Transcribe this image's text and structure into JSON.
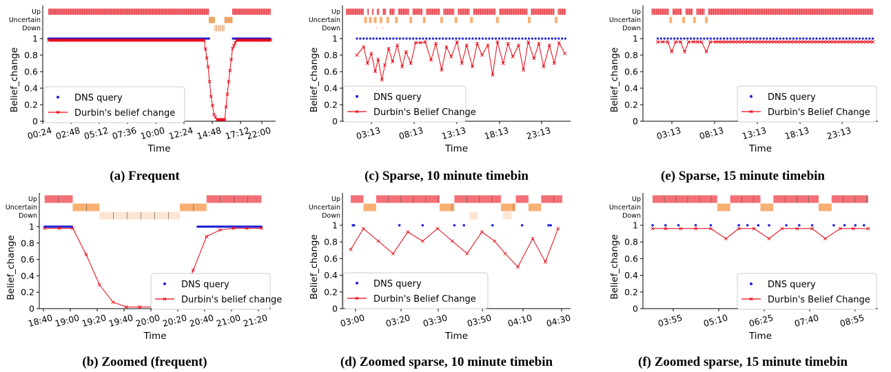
{
  "chart_data": [
    {
      "type": "line",
      "caption": "(a) Frequent",
      "xlabel": "Time",
      "ylabel": "Belief_change",
      "x_ticks": [
        "00:24",
        "02:48",
        "05:12",
        "07:36",
        "10:00",
        "12:24",
        "14:48",
        "17:12",
        "22:00"
      ],
      "y_ticks": [
        "0",
        "0.2",
        "0.4",
        "0.6",
        "0.8",
        "1"
      ],
      "state_labels": [
        "Up",
        "Uncertain",
        "Down"
      ],
      "legend": [
        "DNS query",
        "Durbin's belief change"
      ],
      "legend_position": "center-left",
      "x_range_hours": [
        0.4,
        24.2
      ],
      "ylim": [
        0,
        1.25
      ],
      "state_bands": [
        {
          "state": "Up",
          "start": 1.0,
          "end": 17.4
        },
        {
          "state": "Uncertain",
          "start": 17.4,
          "end": 18.0
        },
        {
          "state": "Down",
          "start": 18.0,
          "end": 19.0
        },
        {
          "state": "Uncertain",
          "start": 19.0,
          "end": 19.8
        },
        {
          "state": "Up",
          "start": 19.8,
          "end": 23.7
        }
      ],
      "dns_query": {
        "start": 1.0,
        "end": 23.7,
        "gap": [
          17.4,
          19.8
        ],
        "value": 1.0
      },
      "belief_change": {
        "x": [
          1.0,
          16.9,
          17.3,
          17.6,
          17.9,
          18.2,
          18.6,
          19.0,
          19.4,
          19.8,
          20.2,
          23.7
        ],
        "y": [
          0.98,
          0.98,
          0.66,
          0.3,
          0.08,
          0.02,
          0.02,
          0.02,
          0.48,
          0.88,
          0.98,
          0.98
        ]
      }
    },
    {
      "type": "line",
      "caption": "(b) Zoomed (frequent)",
      "xlabel": "Time",
      "ylabel": "Belief_change",
      "x_ticks": [
        "18:40",
        "19:00",
        "19:20",
        "19:40",
        "20:00",
        "20:20",
        "20:40",
        "21:00",
        "21:20"
      ],
      "y_ticks": [
        "0",
        "0.2",
        "0.4",
        "0.6",
        "0.8",
        "1"
      ],
      "state_labels": [
        "Up",
        "Uncertain",
        "Down"
      ],
      "legend": [
        "DNS query",
        "Durbin's belief change"
      ],
      "legend_position": "lower-right",
      "x_range_minutes": [
        1115,
        1288
      ],
      "ylim": [
        0,
        1.25
      ],
      "state_bands": [
        {
          "state": "Up",
          "start": 1119,
          "end": 1140
        },
        {
          "state": "Uncertain",
          "start": 1140,
          "end": 1160
        },
        {
          "state": "Down",
          "start": 1160,
          "end": 1220
        },
        {
          "state": "Uncertain",
          "start": 1220,
          "end": 1240
        },
        {
          "state": "Up",
          "start": 1240,
          "end": 1281
        }
      ],
      "dns_query": {
        "start": 1119,
        "end": 1281,
        "gap": [
          1140,
          1233
        ],
        "value": 1.0
      },
      "belief_change": {
        "x": [
          1119,
          1130,
          1140,
          1150,
          1160,
          1170,
          1180,
          1190,
          1200,
          1210,
          1220,
          1230,
          1240,
          1250,
          1260,
          1270,
          1281
        ],
        "y": [
          0.98,
          0.98,
          0.98,
          0.66,
          0.29,
          0.08,
          0.02,
          0.02,
          0.02,
          0.02,
          0.02,
          0.47,
          0.88,
          0.96,
          0.98,
          0.98,
          0.98
        ]
      }
    },
    {
      "type": "line",
      "caption": "(c) Sparse, 10 minute timebin",
      "xlabel": "Time",
      "ylabel": "Belief_change",
      "x_ticks": [
        "03:13",
        "08:13",
        "13:13",
        "18:13",
        "23:13"
      ],
      "y_ticks": [
        "0",
        "0.2",
        "0.4",
        "0.6",
        "0.8",
        "1"
      ],
      "state_labels": [
        "Up",
        "Uncertain",
        "Down"
      ],
      "legend": [
        "DNS query",
        "Durbin's Belief Change"
      ],
      "legend_position": "lower-left",
      "x_range_hours": [
        0.5,
        24.2
      ],
      "ylim": [
        0,
        1.25
      ],
      "uncertain_times": [
        2.9,
        3.4,
        3.9,
        4.5,
        5.2,
        6.1,
        7.6,
        9.0,
        10.8,
        12.3,
        13.9,
        16.6,
        19.9,
        22.7
      ],
      "down_times": [
        4.0,
        4.6
      ],
      "belief_change": {
        "x": [
          2.0,
          2.7,
          3.1,
          3.5,
          3.9,
          4.2,
          4.6,
          4.9,
          5.3,
          5.7,
          6.2,
          6.7,
          7.1,
          7.6,
          8.1,
          8.6,
          9.1,
          9.7,
          10.2,
          10.8,
          11.3,
          11.8,
          12.4,
          12.9,
          13.4,
          14.0,
          14.5,
          15.0,
          15.6,
          16.1,
          16.6,
          17.2,
          17.7,
          18.2,
          18.8,
          19.3,
          19.8,
          20.4,
          20.9,
          21.4,
          22.0,
          22.5,
          23.0,
          23.6
        ],
        "y": [
          0.8,
          0.9,
          0.7,
          0.82,
          0.6,
          0.75,
          0.5,
          0.68,
          0.88,
          0.72,
          0.92,
          0.66,
          0.84,
          0.7,
          0.95,
          0.95,
          0.96,
          0.74,
          0.94,
          0.62,
          0.9,
          0.78,
          0.96,
          0.7,
          0.92,
          0.66,
          0.94,
          0.8,
          0.92,
          0.56,
          0.96,
          0.7,
          0.94,
          0.78,
          0.92,
          0.62,
          0.96,
          0.76,
          0.94,
          0.66,
          0.92,
          0.7,
          0.95,
          0.82
        ]
      }
    },
    {
      "type": "line",
      "caption": "(d) Zoomed sparse, 10 minute timebin",
      "xlabel": "Time",
      "ylabel": "Belief_change",
      "x_ticks": [
        "03:00",
        "03:20",
        "03:30",
        "03:50",
        "04:10",
        "04:30"
      ],
      "y_ticks": [
        "0",
        "0.2",
        "0.4",
        "0.6",
        "0.8",
        "1"
      ],
      "state_labels": [
        "Up",
        "Uncertain",
        "Down"
      ],
      "legend": [
        "DNS query",
        "Durbin's Belief Change"
      ],
      "legend_position": "lower-left",
      "state_bands": [
        {
          "state": "Up",
          "start": 0.0,
          "end": 0.06
        },
        {
          "state": "Up",
          "start": 0.12,
          "end": 0.42
        },
        {
          "state": "Up",
          "start": 0.49,
          "end": 0.71
        },
        {
          "state": "Up",
          "start": 0.78,
          "end": 0.84
        },
        {
          "state": "Up",
          "start": 0.9,
          "end": 1.0
        },
        {
          "state": "Uncertain",
          "start": 0.06,
          "end": 0.12
        },
        {
          "state": "Uncertain",
          "start": 0.42,
          "end": 0.49
        },
        {
          "state": "Uncertain",
          "start": 0.71,
          "end": 0.78
        },
        {
          "state": "Uncertain",
          "start": 0.84,
          "end": 0.9
        },
        {
          "state": "Down",
          "start": 0.56,
          "end": 0.6
        },
        {
          "state": "Down",
          "start": 0.72,
          "end": 0.76
        }
      ],
      "dns_query": {
        "x": [
          0.01,
          0.015,
          0.23,
          0.34,
          0.49,
          0.535,
          0.67,
          0.81,
          0.935,
          0.945
        ],
        "y": [
          1.0,
          1.0,
          1.0,
          1.0,
          1.0,
          1.0,
          1.0,
          1.0,
          1.0,
          1.0
        ]
      },
      "belief_change": {
        "x": [
          0.0,
          0.06,
          0.13,
          0.2,
          0.27,
          0.34,
          0.41,
          0.48,
          0.55,
          0.62,
          0.68,
          0.73,
          0.79,
          0.86,
          0.92,
          0.98
        ],
        "y": [
          0.71,
          0.96,
          0.81,
          0.66,
          0.92,
          0.81,
          0.96,
          0.81,
          0.66,
          0.92,
          0.81,
          0.66,
          0.5,
          0.84,
          0.56,
          0.96
        ]
      }
    },
    {
      "type": "line",
      "caption": "(e) Sparse, 15 minute timebin",
      "xlabel": "Time",
      "ylabel": "Belief_change",
      "x_ticks": [
        "03:13",
        "08:13",
        "13:13",
        "18:13",
        "23:13"
      ],
      "y_ticks": [
        "0",
        "0.2",
        "0.4",
        "0.6",
        "0.8",
        "1"
      ],
      "state_labels": [
        "Up",
        "Uncertain",
        "Down"
      ],
      "legend": [
        "DNS query",
        "Durbin's Belief Change"
      ],
      "legend_position": "lower-right",
      "x_range_hours": [
        0.5,
        24.2
      ],
      "ylim": [
        0,
        1.25
      ],
      "uncertain_times": [
        3.3,
        4.6,
        5.7,
        6.9
      ],
      "belief_change": {
        "x": [
          2.0,
          2.5,
          3.0,
          3.4,
          3.8,
          4.3,
          4.7,
          5.1,
          5.6,
          6.0,
          6.4,
          6.9,
          7.3,
          7.8,
          23.7
        ],
        "y": [
          0.96,
          0.96,
          0.96,
          0.84,
          0.96,
          0.96,
          0.84,
          0.96,
          0.96,
          0.96,
          0.96,
          0.84,
          0.96,
          0.96,
          0.96
        ]
      }
    },
    {
      "type": "line",
      "caption": "(f) Zoomed sparse, 15 minute timebin",
      "xlabel": "Time",
      "ylabel": "Belief_change",
      "x_ticks": [
        "03:55",
        "05:10",
        "06:25",
        "07:40",
        "08:55"
      ],
      "y_ticks": [
        "0",
        "0.2",
        "0.4",
        "0.6",
        "0.8",
        "1"
      ],
      "state_labels": [
        "Up",
        "Uncertain",
        "Down"
      ],
      "legend": [
        "DNS query",
        "Durbin's Belief Change"
      ],
      "legend_position": "lower-right",
      "state_bands": [
        {
          "state": "Up",
          "start": 0.0,
          "end": 0.3
        },
        {
          "state": "Up",
          "start": 0.36,
          "end": 0.5
        },
        {
          "state": "Up",
          "start": 0.56,
          "end": 0.77
        },
        {
          "state": "Up",
          "start": 0.83,
          "end": 1.0
        },
        {
          "state": "Uncertain",
          "start": 0.3,
          "end": 0.36
        },
        {
          "state": "Uncertain",
          "start": 0.5,
          "end": 0.56
        },
        {
          "state": "Uncertain",
          "start": 0.77,
          "end": 0.83
        }
      ],
      "dns_query": {
        "x": [
          0.0,
          0.06,
          0.12,
          0.2,
          0.27,
          0.4,
          0.44,
          0.49,
          0.54,
          0.62,
          0.68,
          0.74,
          0.84,
          0.89,
          0.94,
          0.98
        ],
        "y": [
          1.0,
          1.0,
          1.0,
          1.0,
          1.0,
          1.0,
          1.0,
          1.0,
          1.0,
          1.0,
          1.0,
          1.0,
          1.0,
          1.0,
          1.0,
          1.0
        ]
      },
      "belief_change": {
        "x": [
          0.0,
          0.06,
          0.13,
          0.2,
          0.27,
          0.34,
          0.4,
          0.47,
          0.54,
          0.6,
          0.67,
          0.74,
          0.8,
          0.87,
          0.93,
          1.0
        ],
        "y": [
          0.96,
          0.96,
          0.96,
          0.96,
          0.96,
          0.84,
          0.96,
          0.96,
          0.84,
          0.96,
          0.96,
          0.96,
          0.84,
          0.96,
          0.96,
          0.96
        ]
      }
    }
  ],
  "colors": {
    "up": "#f47077",
    "uncertain": "#f8b072",
    "down": "#fde5d3",
    "dns": "#1f1fd9",
    "belief": "#e8000f"
  }
}
